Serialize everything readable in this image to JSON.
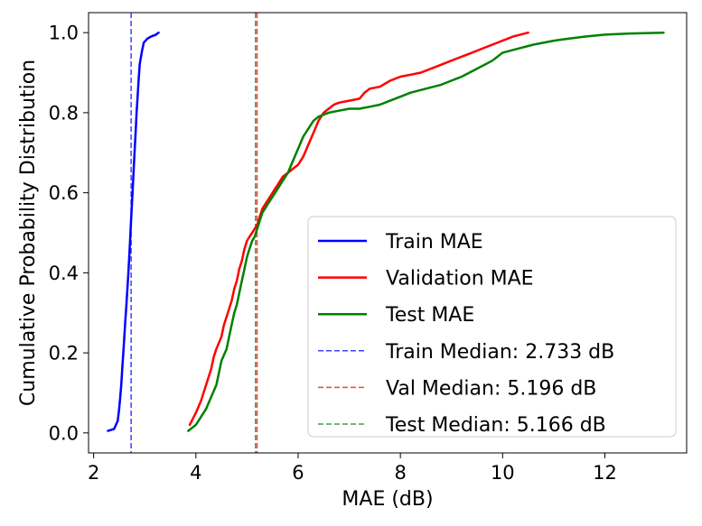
{
  "chart_data": {
    "type": "line",
    "title": "",
    "xlabel": "MAE (dB)",
    "ylabel": "Cumulative Probability Distribution",
    "xlim": [
      1.9,
      13.6
    ],
    "ylim": [
      -0.05,
      1.05
    ],
    "xticks": [
      2,
      4,
      6,
      8,
      10,
      12
    ],
    "yticks": [
      0.0,
      0.2,
      0.4,
      0.6,
      0.8,
      1.0
    ],
    "xtick_labels": [
      "2",
      "4",
      "6",
      "8",
      "10",
      "12"
    ],
    "ytick_labels": [
      "0.0",
      "0.2",
      "0.4",
      "0.6",
      "0.8",
      "1.0"
    ],
    "legend_position": "lower-right",
    "series": [
      {
        "name": "Train MAE",
        "color": "#0000ff",
        "style": "solid",
        "x": [
          2.28,
          2.4,
          2.47,
          2.5,
          2.52,
          2.54,
          2.56,
          2.58,
          2.6,
          2.62,
          2.64,
          2.66,
          2.68,
          2.7,
          2.72,
          2.74,
          2.76,
          2.78,
          2.8,
          2.82,
          2.84,
          2.86,
          2.88,
          2.9,
          2.94,
          2.98,
          3.05,
          3.12,
          3.22,
          3.27
        ],
        "y": [
          0.005,
          0.01,
          0.03,
          0.06,
          0.09,
          0.12,
          0.16,
          0.2,
          0.24,
          0.28,
          0.32,
          0.36,
          0.4,
          0.45,
          0.5,
          0.55,
          0.6,
          0.65,
          0.7,
          0.75,
          0.8,
          0.84,
          0.88,
          0.92,
          0.95,
          0.975,
          0.985,
          0.99,
          0.995,
          1.0
        ]
      },
      {
        "name": "Validation MAE",
        "color": "#ff0000",
        "style": "solid",
        "x": [
          3.88,
          4.0,
          4.1,
          4.2,
          4.3,
          4.35,
          4.4,
          4.5,
          4.55,
          4.6,
          4.65,
          4.7,
          4.75,
          4.8,
          4.85,
          4.9,
          4.95,
          5.0,
          5.05,
          5.1,
          5.15,
          5.2,
          5.25,
          5.3,
          5.35,
          5.4,
          5.45,
          5.5,
          5.55,
          5.6,
          5.65,
          5.7,
          5.8,
          5.9,
          6.0,
          6.1,
          6.2,
          6.3,
          6.4,
          6.5,
          6.6,
          6.7,
          6.8,
          7.0,
          7.2,
          7.3,
          7.4,
          7.6,
          7.8,
          8.0,
          8.2,
          8.4,
          8.6,
          8.8,
          9.0,
          9.2,
          9.4,
          9.6,
          9.8,
          10.0,
          10.2,
          10.5
        ],
        "y": [
          0.02,
          0.05,
          0.08,
          0.12,
          0.16,
          0.19,
          0.21,
          0.24,
          0.27,
          0.29,
          0.31,
          0.33,
          0.36,
          0.38,
          0.41,
          0.43,
          0.46,
          0.48,
          0.49,
          0.5,
          0.51,
          0.52,
          0.54,
          0.56,
          0.57,
          0.58,
          0.59,
          0.6,
          0.61,
          0.62,
          0.63,
          0.64,
          0.65,
          0.66,
          0.67,
          0.69,
          0.72,
          0.75,
          0.78,
          0.8,
          0.81,
          0.82,
          0.825,
          0.83,
          0.835,
          0.85,
          0.86,
          0.865,
          0.88,
          0.89,
          0.895,
          0.9,
          0.91,
          0.92,
          0.93,
          0.94,
          0.95,
          0.96,
          0.97,
          0.98,
          0.99,
          1.0
        ]
      },
      {
        "name": "Test MAE",
        "color": "#008000",
        "style": "solid",
        "x": [
          3.85,
          4.0,
          4.1,
          4.2,
          4.3,
          4.4,
          4.45,
          4.5,
          4.6,
          4.65,
          4.7,
          4.75,
          4.8,
          4.85,
          4.9,
          4.95,
          5.0,
          5.05,
          5.1,
          5.15,
          5.2,
          5.25,
          5.3,
          5.35,
          5.4,
          5.5,
          5.6,
          5.7,
          5.8,
          5.9,
          6.0,
          6.1,
          6.2,
          6.3,
          6.4,
          6.6,
          6.8,
          7.0,
          7.2,
          7.4,
          7.6,
          7.8,
          8.0,
          8.2,
          8.5,
          8.8,
          9.0,
          9.2,
          9.5,
          9.8,
          10.0,
          10.3,
          10.6,
          11.0,
          11.3,
          11.6,
          12.0,
          12.5,
          13.15
        ],
        "y": [
          0.005,
          0.02,
          0.04,
          0.06,
          0.09,
          0.12,
          0.15,
          0.18,
          0.21,
          0.24,
          0.27,
          0.3,
          0.32,
          0.35,
          0.38,
          0.41,
          0.44,
          0.46,
          0.48,
          0.49,
          0.51,
          0.53,
          0.55,
          0.56,
          0.57,
          0.59,
          0.61,
          0.63,
          0.65,
          0.68,
          0.71,
          0.74,
          0.76,
          0.78,
          0.79,
          0.8,
          0.805,
          0.81,
          0.81,
          0.815,
          0.82,
          0.83,
          0.84,
          0.85,
          0.86,
          0.87,
          0.88,
          0.89,
          0.91,
          0.93,
          0.95,
          0.96,
          0.97,
          0.98,
          0.985,
          0.99,
          0.995,
          0.998,
          1.0
        ]
      }
    ],
    "vlines": [
      {
        "name": "Train Median: 2.733 dB",
        "x": 2.733,
        "color": "#0000ff",
        "style": "dashed"
      },
      {
        "name": "Val Median: 5.196 dB",
        "x": 5.196,
        "color": "#ff0000",
        "style": "dashed"
      },
      {
        "name": "Test Median: 5.166 dB",
        "x": 5.166,
        "color": "#008000",
        "style": "dashed"
      }
    ],
    "legend": [
      {
        "label": "Train MAE",
        "color": "#0000ff",
        "style": "solid"
      },
      {
        "label": "Validation MAE",
        "color": "#ff0000",
        "style": "solid"
      },
      {
        "label": "Test MAE",
        "color": "#008000",
        "style": "solid"
      },
      {
        "label": "Train Median: 2.733 dB",
        "color": "#0000ff",
        "style": "dashed"
      },
      {
        "label": "Val Median: 5.196 dB",
        "color": "#ff0000",
        "style": "dashed"
      },
      {
        "label": "Test Median: 5.166 dB",
        "color": "#008000",
        "style": "dashed"
      }
    ]
  }
}
